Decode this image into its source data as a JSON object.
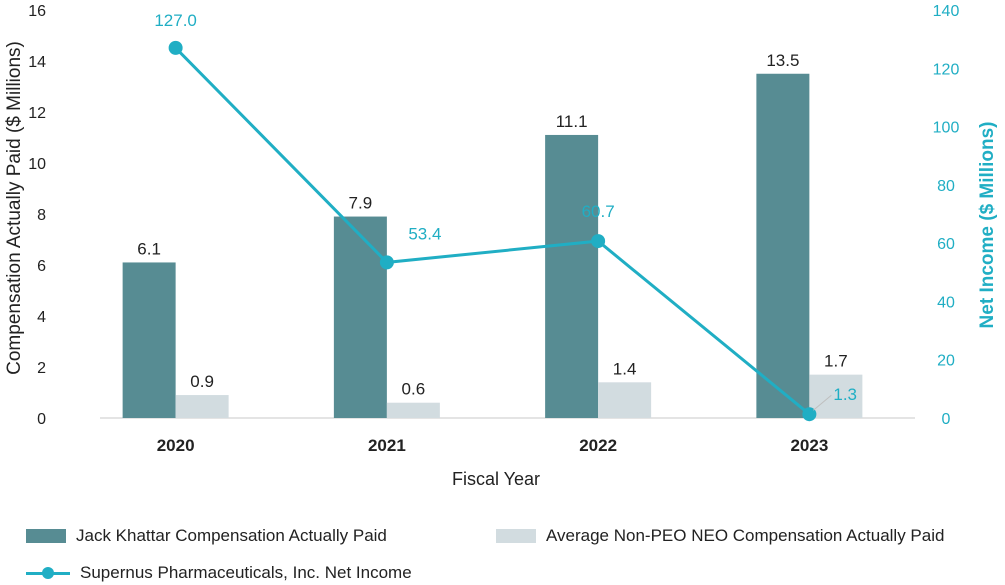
{
  "chart_data": {
    "type": "bar",
    "categories": [
      "2020",
      "2021",
      "2022",
      "2023"
    ],
    "xlabel": "Fiscal Year",
    "ylabel": "Compensation Actually Paid ($ Millions)",
    "y2label": "Net Income ($ Millions)",
    "ylim": [
      0,
      16
    ],
    "y2lim": [
      0,
      140
    ],
    "yticks": [
      "0",
      "2",
      "4",
      "6",
      "8",
      "10",
      "12",
      "14",
      "16"
    ],
    "y2ticks": [
      "0",
      "20",
      "40",
      "60",
      "80",
      "100",
      "120",
      "140"
    ],
    "series": [
      {
        "name": "Jack Khattar Compensation Actually Paid",
        "kind": "bar",
        "axis": "left",
        "color": "#578c93",
        "values": [
          6.1,
          7.9,
          11.1,
          13.5
        ],
        "labels": [
          "6.1",
          "7.9",
          "11.1",
          "13.5"
        ]
      },
      {
        "name": "Average Non-PEO NEO Compensation Actually Paid",
        "kind": "bar",
        "axis": "left",
        "color": "#d2dce0",
        "values": [
          0.9,
          0.6,
          1.4,
          1.7
        ],
        "labels": [
          "0.9",
          "0.6",
          "1.4",
          "1.7"
        ]
      },
      {
        "name": "Supernus Pharmaceuticals, Inc. Net Income",
        "kind": "line",
        "axis": "right",
        "color": "#20aec4",
        "values": [
          127.0,
          53.4,
          60.7,
          1.3
        ],
        "labels": [
          "127.0",
          "53.4",
          "60.7",
          "1.3"
        ]
      }
    ],
    "legend_position": "bottom",
    "grid": false
  }
}
